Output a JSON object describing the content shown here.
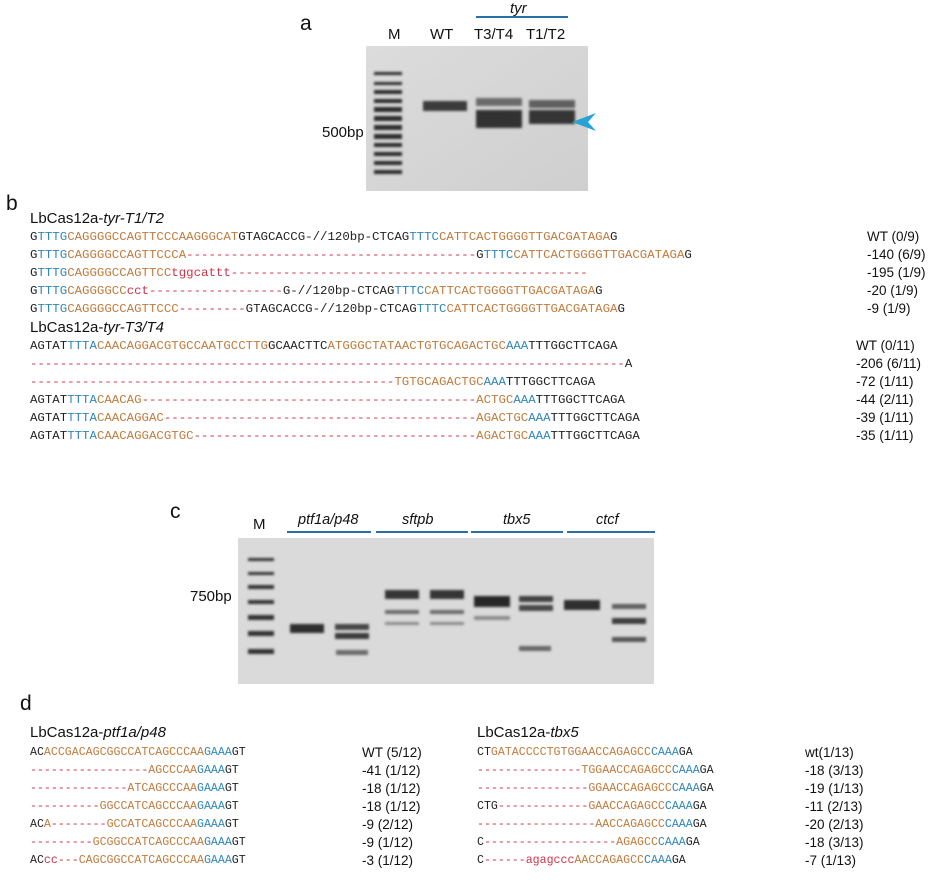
{
  "panel_a": {
    "letter": "a",
    "lane_labels": [
      "M",
      "WT",
      "T3/T4",
      "T1/T2"
    ],
    "group_label": "tyr",
    "size_marker": "500bp"
  },
  "panel_b": {
    "letter": "b",
    "t12_title_prefix": "LbCas12a-",
    "t12_title_gene": "tyr-T1/T2",
    "t12_rows": [
      {
        "segs": [
          [
            "k",
            "G"
          ],
          [
            "b",
            "TTTG"
          ],
          [
            "o",
            "CAGGGGCCAGTTCCCAAGGGCAT"
          ],
          [
            "k",
            "GTAGCACCG-//120bp-CTCAG"
          ],
          [
            "b",
            "TTTC"
          ],
          [
            "o",
            "CATTCACTGGGGTTGACGATAGA"
          ],
          [
            "k",
            "G"
          ]
        ],
        "note": "WT (0/9)"
      },
      {
        "segs": [
          [
            "k",
            "G"
          ],
          [
            "b",
            "TTTG"
          ],
          [
            "o",
            "CAGGGGCCAGTTCCCA"
          ],
          [
            "r",
            "---------------------------------------"
          ],
          [
            "k",
            "G"
          ],
          [
            "b",
            "TTTC"
          ],
          [
            "o",
            "CATTCACTGGGGTTGACGATAGA"
          ],
          [
            "k",
            "G"
          ]
        ],
        "note": "-140 (6/9)"
      },
      {
        "segs": [
          [
            "k",
            "G"
          ],
          [
            "b",
            "TTTG"
          ],
          [
            "o",
            "CAGGGGCCAGTTCC"
          ],
          [
            "r",
            "tggcattt------------------------------------------------"
          ]
        ],
        "note": "-195 (1/9)"
      },
      {
        "segs": [
          [
            "k",
            "G"
          ],
          [
            "b",
            "TTTG"
          ],
          [
            "o",
            "CAGGGGCC"
          ],
          [
            "r",
            "cct------------------"
          ],
          [
            "k",
            "G-//120bp-CTCAG"
          ],
          [
            "b",
            "TTTC"
          ],
          [
            "o",
            "CATTCACTGGGGTTGACGATAGA"
          ],
          [
            "k",
            "G"
          ]
        ],
        "note": "-20 (1/9)"
      },
      {
        "segs": [
          [
            "k",
            "G"
          ],
          [
            "b",
            "TTTG"
          ],
          [
            "o",
            "CAGGGGCCAGTTCCC"
          ],
          [
            "r",
            "---------"
          ],
          [
            "k",
            "GTAGCACCG-//120bp-CTCAG"
          ],
          [
            "b",
            "TTTC"
          ],
          [
            "o",
            "CATTCACTGGGGTTGACGATAGA"
          ],
          [
            "k",
            "G"
          ]
        ],
        "note": "-9 (1/9)"
      }
    ],
    "t34_title_prefix": "LbCas12a-",
    "t34_title_gene": "tyr-T3/T4",
    "t34_rows": [
      {
        "segs": [
          [
            "k",
            "AGTAT"
          ],
          [
            "b",
            "TTTA"
          ],
          [
            "o",
            "CAACAGGACGTGCCAATGCCTTG"
          ],
          [
            "k",
            "GCAACTTC"
          ],
          [
            "o",
            "ATGGGCTATAACTGTGCAGACTGC"
          ],
          [
            "b",
            "AAA"
          ],
          [
            "k",
            "TTTGGCTTCAGA"
          ]
        ],
        "note": "WT (0/11)"
      },
      {
        "segs": [
          [
            "r",
            "--------------------------------------------------------------------------------"
          ],
          [
            "k",
            "A"
          ]
        ],
        "note": "-206 (6/11)"
      },
      {
        "segs": [
          [
            "r",
            "-------------------------------------------------"
          ],
          [
            "o",
            "TGTGCAGACTGC"
          ],
          [
            "b",
            "AAA"
          ],
          [
            "k",
            "TTTGGCTTCAGA"
          ]
        ],
        "note": "-72 (1/11)"
      },
      {
        "segs": [
          [
            "k",
            "AGTAT"
          ],
          [
            "b",
            "TTTA"
          ],
          [
            "o",
            "CAACAG"
          ],
          [
            "r",
            "---------------------------------------------"
          ],
          [
            "o",
            "ACTGC"
          ],
          [
            "b",
            "AAA"
          ],
          [
            "k",
            "TTTGGCTTCAGA"
          ]
        ],
        "note": "-44 (2/11)"
      },
      {
        "segs": [
          [
            "k",
            "AGTAT"
          ],
          [
            "b",
            "TTTA"
          ],
          [
            "o",
            "CAACAGGAC"
          ],
          [
            "r",
            "------------------------------------------"
          ],
          [
            "o",
            "AGACTGC"
          ],
          [
            "b",
            "AAA"
          ],
          [
            "k",
            "TTTGGCTTCAGA"
          ]
        ],
        "note": "-39 (1/11)"
      },
      {
        "segs": [
          [
            "k",
            "AGTAT"
          ],
          [
            "b",
            "TTTA"
          ],
          [
            "o",
            "CAACAGGACGTGC"
          ],
          [
            "r",
            "--------------------------------------"
          ],
          [
            "o",
            "AGACTGC"
          ],
          [
            "b",
            "AAA"
          ],
          [
            "k",
            "TTTGGCTTCAGA"
          ]
        ],
        "note": "-35 (1/11)"
      }
    ]
  },
  "panel_c": {
    "letter": "c",
    "marker_lane": "M",
    "groups": [
      "ptf1a/p48",
      "sftpb",
      "tbx5",
      "ctcf"
    ],
    "size_marker": "750bp"
  },
  "panel_d": {
    "letter": "d",
    "left_title_prefix": "LbCas12a-",
    "left_title_gene": "ptf1a/p48",
    "left_rows": [
      {
        "segs": [
          [
            "k",
            "AC"
          ],
          [
            "o",
            "ACCGACAGCGGCCATCAGCCCAA"
          ],
          [
            "b",
            "GAAA"
          ],
          [
            "k",
            "GT"
          ]
        ],
        "note": "WT (5/12)"
      },
      {
        "segs": [
          [
            "r",
            "-----------------"
          ],
          [
            "o",
            "AGCCCAA"
          ],
          [
            "b",
            "GAAA"
          ],
          [
            "k",
            "GT"
          ]
        ],
        "note": "-41 (1/12)"
      },
      {
        "segs": [
          [
            "r",
            "--------------"
          ],
          [
            "o",
            "ATCAGCCCAA"
          ],
          [
            "b",
            "GAAA"
          ],
          [
            "k",
            "GT"
          ]
        ],
        "note": "-18 (1/12)"
      },
      {
        "segs": [
          [
            "r",
            "----------"
          ],
          [
            "o",
            "GGCCATCAGCCCAA"
          ],
          [
            "b",
            "GAAA"
          ],
          [
            "k",
            "GT"
          ]
        ],
        "note": "-18 (1/12)"
      },
      {
        "segs": [
          [
            "k",
            "AC"
          ],
          [
            "o",
            "A"
          ],
          [
            "r",
            "--------"
          ],
          [
            "o",
            "GCCATCAGCCCAA"
          ],
          [
            "b",
            "GAAA"
          ],
          [
            "k",
            "GT"
          ]
        ],
        "note": "-9  (2/12)"
      },
      {
        "segs": [
          [
            "r",
            "---------"
          ],
          [
            "o",
            "GCGGCCATCAGCCCAA"
          ],
          [
            "b",
            "GAAA"
          ],
          [
            "k",
            "GT"
          ]
        ],
        "note": "-9 (1/12)"
      },
      {
        "segs": [
          [
            "k",
            "AC"
          ],
          [
            "r",
            "cc---"
          ],
          [
            "o",
            "CAGCGGCCATCAGCCCAA"
          ],
          [
            "b",
            "GAAA"
          ],
          [
            "k",
            "GT"
          ]
        ],
        "note": "-3 (1/12)"
      }
    ],
    "right_title_prefix": "LbCas12a-",
    "right_title_gene": "tbx5",
    "right_rows": [
      {
        "segs": [
          [
            "k",
            "CT"
          ],
          [
            "o",
            "GATACCCCTGTGGAACCAGAGCC"
          ],
          [
            "b",
            "CAAA"
          ],
          [
            "k",
            "GA"
          ]
        ],
        "note": "wt(1/13)"
      },
      {
        "segs": [
          [
            "r",
            "---------------"
          ],
          [
            "o",
            "TGGAACCAGAGCC"
          ],
          [
            "b",
            "CAAA"
          ],
          [
            "k",
            "GA"
          ]
        ],
        "note": "-18 (3/13)"
      },
      {
        "segs": [
          [
            "r",
            "----------------"
          ],
          [
            "o",
            "GGAACCAGAGCC"
          ],
          [
            "b",
            "CAAA"
          ],
          [
            "k",
            "GA"
          ]
        ],
        "note": "-19 (1/13)"
      },
      {
        "segs": [
          [
            "k",
            "CTG"
          ],
          [
            "r",
            "-------------"
          ],
          [
            "o",
            "GAACCAGAGCC"
          ],
          [
            "b",
            "CAAA"
          ],
          [
            "k",
            "GA"
          ]
        ],
        "note": "-11 (2/13)"
      },
      {
        "segs": [
          [
            "r",
            "-----------------"
          ],
          [
            "o",
            "AACCAGAGCC"
          ],
          [
            "b",
            "CAAA"
          ],
          [
            "k",
            "GA"
          ]
        ],
        "note": "-20 (2/13)"
      },
      {
        "segs": [
          [
            "k",
            "C"
          ],
          [
            "r",
            "-------------------"
          ],
          [
            "o",
            "AGAGCC"
          ],
          [
            "b",
            "CAAA"
          ],
          [
            "k",
            "GA"
          ]
        ],
        "note": "-18 (3/13)"
      },
      {
        "segs": [
          [
            "k",
            "C"
          ],
          [
            "r",
            "------"
          ],
          [
            "r",
            "agagccc"
          ],
          [
            "o",
            "AACCAGAGCC"
          ],
          [
            "b",
            "CAAA"
          ],
          [
            "k",
            "GA"
          ]
        ],
        "note": "-7 (1/13)"
      }
    ]
  },
  "colors": {
    "blue": "#2e86b8",
    "orange": "#c07a3c",
    "red": "#cc3347",
    "arrow": "#29a3d6"
  }
}
